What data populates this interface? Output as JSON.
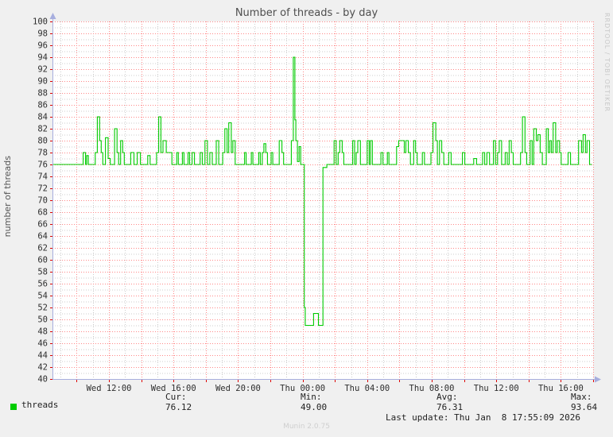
{
  "title": "Number of threads - by day",
  "y_axis": {
    "label": "number of threads"
  },
  "watermarks": {
    "right": "RRDTOOL / TOBI OETIKER",
    "bottom": "Munin 2.0.75"
  },
  "legend": {
    "swatch_color": "#00cc00",
    "label": "threads"
  },
  "footer": {
    "stats": [
      {
        "label": "Cur:",
        "value": "76.12"
      },
      {
        "label": "Min:",
        "value": "49.00"
      },
      {
        "label": "Avg:",
        "value": "76.31"
      },
      {
        "label": "Max:",
        "value": "93.64"
      }
    ],
    "last_update": "Last update: Thu Jan  8 17:55:09 2026"
  },
  "chart_data": {
    "type": "line",
    "title": "Number of threads - by day",
    "ylabel": "number of threads",
    "ylim": [
      40,
      100
    ],
    "y_tick_step": 2,
    "x_range_hours": [
      8.5,
      42.0
    ],
    "x_hours_epoch": "Wed 00:00",
    "x_ticks": [
      {
        "t": 12,
        "label": "Wed 12:00"
      },
      {
        "t": 16,
        "label": "Wed 16:00"
      },
      {
        "t": 20,
        "label": "Wed 20:00"
      },
      {
        "t": 24,
        "label": "Thu 00:00"
      },
      {
        "t": 28,
        "label": "Thu 04:00"
      },
      {
        "t": 32,
        "label": "Thu 08:00"
      },
      {
        "t": 36,
        "label": "Thu 12:00"
      },
      {
        "t": 40,
        "label": "Thu 16:00"
      }
    ],
    "grid": {
      "major_color": "#ff8888",
      "minor_color": "#cccccc",
      "style": "dotted"
    },
    "axis_color": "#a7aede",
    "tick_color": "#dd0000",
    "legend_position": "bottom",
    "series": [
      {
        "name": "threads",
        "color": "#00cc00",
        "stats": {
          "cur": 76.12,
          "min": 49.0,
          "avg": 76.31,
          "max": 93.64
        },
        "runs_format": "[start_hour, end_hour, value] step segments, hours since Wed 00:00",
        "runs": [
          [
            8.5,
            10.4,
            76
          ],
          [
            10.4,
            10.55,
            78
          ],
          [
            10.55,
            10.62,
            76
          ],
          [
            10.62,
            10.72,
            77.5
          ],
          [
            10.72,
            11.15,
            76
          ],
          [
            11.15,
            11.28,
            78
          ],
          [
            11.28,
            11.42,
            84
          ],
          [
            11.42,
            11.52,
            80
          ],
          [
            11.52,
            11.62,
            78
          ],
          [
            11.62,
            11.78,
            76
          ],
          [
            11.78,
            11.95,
            80.5
          ],
          [
            11.95,
            12.08,
            77
          ],
          [
            12.08,
            12.35,
            76
          ],
          [
            12.35,
            12.5,
            82
          ],
          [
            12.5,
            12.6,
            78
          ],
          [
            12.6,
            12.72,
            76
          ],
          [
            12.72,
            12.85,
            80
          ],
          [
            12.85,
            12.95,
            78
          ],
          [
            12.95,
            13.35,
            76
          ],
          [
            13.35,
            13.55,
            78
          ],
          [
            13.55,
            13.75,
            76
          ],
          [
            13.75,
            13.95,
            78
          ],
          [
            13.95,
            14.4,
            76
          ],
          [
            14.4,
            14.55,
            77.5
          ],
          [
            14.55,
            14.95,
            76
          ],
          [
            14.95,
            15.08,
            78
          ],
          [
            15.08,
            15.22,
            84
          ],
          [
            15.22,
            15.35,
            78
          ],
          [
            15.35,
            15.55,
            80
          ],
          [
            15.55,
            15.9,
            78
          ],
          [
            15.9,
            16.2,
            76
          ],
          [
            16.2,
            16.3,
            78
          ],
          [
            16.3,
            16.55,
            76
          ],
          [
            16.55,
            16.65,
            78
          ],
          [
            16.65,
            16.9,
            76
          ],
          [
            16.9,
            17.0,
            78
          ],
          [
            17.0,
            17.15,
            76
          ],
          [
            17.15,
            17.3,
            78
          ],
          [
            17.3,
            17.65,
            76
          ],
          [
            17.65,
            17.78,
            78
          ],
          [
            17.78,
            17.95,
            76
          ],
          [
            17.95,
            18.1,
            80
          ],
          [
            18.1,
            18.25,
            76
          ],
          [
            18.25,
            18.4,
            78
          ],
          [
            18.4,
            18.65,
            76
          ],
          [
            18.65,
            18.8,
            80
          ],
          [
            18.8,
            19.05,
            76
          ],
          [
            19.05,
            19.18,
            78
          ],
          [
            19.18,
            19.32,
            82
          ],
          [
            19.32,
            19.42,
            78
          ],
          [
            19.42,
            19.58,
            83
          ],
          [
            19.58,
            19.68,
            78
          ],
          [
            19.68,
            19.82,
            80
          ],
          [
            19.82,
            20.4,
            76
          ],
          [
            20.4,
            20.5,
            78
          ],
          [
            20.5,
            20.82,
            76
          ],
          [
            20.82,
            20.92,
            78
          ],
          [
            20.92,
            21.28,
            76
          ],
          [
            21.28,
            21.38,
            78
          ],
          [
            21.38,
            21.5,
            76
          ],
          [
            21.5,
            21.6,
            78
          ],
          [
            21.6,
            21.72,
            79.5
          ],
          [
            21.72,
            21.82,
            78
          ],
          [
            21.82,
            22.05,
            76
          ],
          [
            22.05,
            22.15,
            78
          ],
          [
            22.15,
            22.55,
            76
          ],
          [
            22.55,
            22.72,
            80
          ],
          [
            22.72,
            22.82,
            78
          ],
          [
            22.82,
            23.3,
            76
          ],
          [
            23.3,
            23.42,
            80
          ],
          [
            23.42,
            23.52,
            94
          ],
          [
            23.52,
            23.58,
            83.5
          ],
          [
            23.58,
            23.68,
            80
          ],
          [
            23.68,
            23.78,
            76.5
          ],
          [
            23.78,
            23.88,
            79
          ],
          [
            23.88,
            24.1,
            76
          ],
          [
            24.1,
            24.16,
            52
          ],
          [
            24.16,
            24.68,
            49
          ],
          [
            24.68,
            24.98,
            51
          ],
          [
            24.98,
            25.26,
            49
          ],
          [
            25.26,
            25.5,
            75.5
          ],
          [
            25.5,
            25.95,
            76
          ],
          [
            25.95,
            26.08,
            80
          ],
          [
            26.08,
            26.2,
            76
          ],
          [
            26.2,
            26.3,
            78
          ],
          [
            26.3,
            26.45,
            80
          ],
          [
            26.45,
            26.55,
            78
          ],
          [
            26.55,
            27.1,
            76
          ],
          [
            27.1,
            27.22,
            80
          ],
          [
            27.22,
            27.32,
            76
          ],
          [
            27.32,
            27.42,
            78
          ],
          [
            27.42,
            27.58,
            80
          ],
          [
            27.58,
            28.0,
            76
          ],
          [
            28.0,
            28.12,
            80
          ],
          [
            28.12,
            28.2,
            76
          ],
          [
            28.2,
            28.32,
            80
          ],
          [
            28.32,
            28.85,
            76
          ],
          [
            28.85,
            28.98,
            78
          ],
          [
            28.98,
            29.25,
            76
          ],
          [
            29.25,
            29.35,
            78
          ],
          [
            29.35,
            29.82,
            76
          ],
          [
            29.82,
            29.95,
            79
          ],
          [
            29.95,
            30.3,
            80
          ],
          [
            30.3,
            30.4,
            78
          ],
          [
            30.4,
            30.55,
            80
          ],
          [
            30.55,
            30.68,
            78
          ],
          [
            30.68,
            30.88,
            76
          ],
          [
            30.88,
            31.0,
            80
          ],
          [
            31.0,
            31.1,
            78
          ],
          [
            31.1,
            31.42,
            76
          ],
          [
            31.42,
            31.55,
            78
          ],
          [
            31.55,
            31.95,
            76
          ],
          [
            31.95,
            32.08,
            78
          ],
          [
            32.08,
            32.25,
            83
          ],
          [
            32.25,
            32.35,
            80
          ],
          [
            32.35,
            32.48,
            76
          ],
          [
            32.48,
            32.62,
            80
          ],
          [
            32.62,
            32.75,
            78
          ],
          [
            32.75,
            33.05,
            76
          ],
          [
            33.05,
            33.2,
            78
          ],
          [
            33.2,
            33.9,
            76
          ],
          [
            33.9,
            34.05,
            78
          ],
          [
            34.05,
            34.6,
            76
          ],
          [
            34.6,
            34.78,
            77
          ],
          [
            34.78,
            35.15,
            76
          ],
          [
            35.15,
            35.28,
            78
          ],
          [
            35.28,
            35.42,
            76
          ],
          [
            35.42,
            35.58,
            78
          ],
          [
            35.58,
            35.82,
            76
          ],
          [
            35.82,
            35.95,
            80
          ],
          [
            35.95,
            36.08,
            76
          ],
          [
            36.08,
            36.18,
            78
          ],
          [
            36.18,
            36.33,
            80
          ],
          [
            36.33,
            36.55,
            76
          ],
          [
            36.55,
            36.68,
            78
          ],
          [
            36.68,
            36.8,
            76
          ],
          [
            36.8,
            36.93,
            80
          ],
          [
            36.93,
            37.05,
            78
          ],
          [
            37.05,
            37.5,
            76
          ],
          [
            37.5,
            37.62,
            78
          ],
          [
            37.62,
            37.78,
            84
          ],
          [
            37.78,
            37.88,
            78
          ],
          [
            37.88,
            38.1,
            76
          ],
          [
            38.1,
            38.22,
            80
          ],
          [
            38.22,
            38.32,
            76
          ],
          [
            38.32,
            38.48,
            82
          ],
          [
            38.48,
            38.58,
            80
          ],
          [
            38.58,
            38.72,
            81
          ],
          [
            38.72,
            38.85,
            78
          ],
          [
            38.85,
            39.1,
            76
          ],
          [
            39.1,
            39.22,
            82
          ],
          [
            39.22,
            39.32,
            78
          ],
          [
            39.32,
            39.42,
            80
          ],
          [
            39.42,
            39.52,
            78
          ],
          [
            39.52,
            39.68,
            83
          ],
          [
            39.68,
            39.78,
            78
          ],
          [
            39.78,
            39.92,
            80
          ],
          [
            39.92,
            40.02,
            78
          ],
          [
            40.02,
            40.45,
            76
          ],
          [
            40.45,
            40.6,
            78
          ],
          [
            40.6,
            41.1,
            76
          ],
          [
            41.1,
            41.28,
            80
          ],
          [
            41.28,
            41.38,
            78
          ],
          [
            41.38,
            41.52,
            81
          ],
          [
            41.52,
            41.62,
            78
          ],
          [
            41.62,
            41.78,
            80
          ],
          [
            41.78,
            41.92,
            76
          ]
        ]
      }
    ]
  }
}
